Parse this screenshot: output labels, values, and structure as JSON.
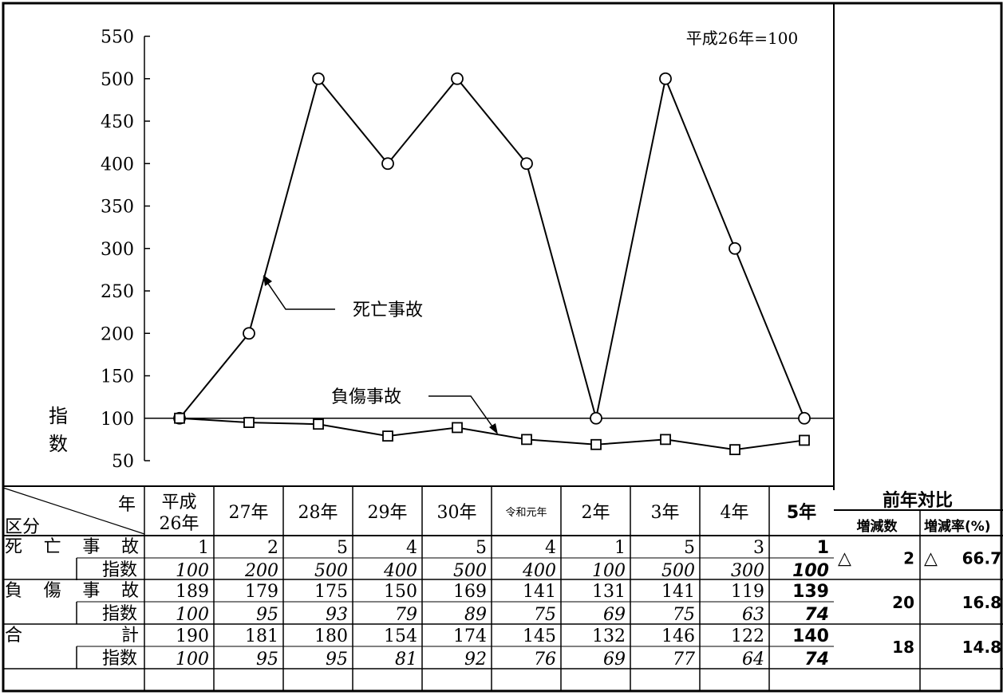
{
  "chart_data": {
    "type": "line",
    "ylabel": "指数",
    "ylim": [
      50,
      550
    ],
    "yticks": [
      550,
      500,
      450,
      400,
      350,
      300,
      250,
      200,
      150,
      100,
      50
    ],
    "note": "平成26年=100",
    "reference_line": 100,
    "categories": [
      "平成26年",
      "27年",
      "28年",
      "29年",
      "30年",
      "令和元年",
      "2年",
      "3年",
      "4年",
      "5年"
    ],
    "series": [
      {
        "name": "死亡事故",
        "marker": "circle",
        "values": [
          100,
          200,
          500,
          400,
          500,
          400,
          100,
          500,
          300,
          100
        ]
      },
      {
        "name": "負傷事故",
        "marker": "square",
        "values": [
          100,
          95,
          93,
          79,
          89,
          75,
          69,
          75,
          63,
          74
        ]
      }
    ]
  },
  "table": {
    "corner_year": "年",
    "corner_kubun": "区分",
    "headers": [
      {
        "lines": [
          "平成",
          "26年"
        ]
      },
      {
        "lines": [
          "27年"
        ]
      },
      {
        "lines": [
          "28年"
        ]
      },
      {
        "lines": [
          "29年"
        ]
      },
      {
        "lines": [
          "30年"
        ]
      },
      {
        "lines": [
          "令和元年"
        ],
        "small": true
      },
      {
        "lines": [
          "2年"
        ]
      },
      {
        "lines": [
          "3年"
        ]
      },
      {
        "lines": [
          "4年"
        ]
      },
      {
        "lines": [
          "5年"
        ],
        "bold": true
      }
    ],
    "comparison_title": "前年対比",
    "comparison_headers": [
      "増減数",
      "増減率(%)"
    ],
    "groups": [
      {
        "label_chars": [
          "死",
          "亡",
          "事",
          "故"
        ],
        "counts": [
          1,
          2,
          5,
          4,
          5,
          4,
          1,
          5,
          3,
          1
        ],
        "index_label": "指数",
        "index": [
          100,
          200,
          500,
          400,
          500,
          400,
          100,
          500,
          300,
          100
        ],
        "change": {
          "sign": "△",
          "value": "2"
        },
        "rate": {
          "sign": "△",
          "value": "66.7"
        }
      },
      {
        "label_chars": [
          "負",
          "傷",
          "事",
          "故"
        ],
        "counts": [
          189,
          179,
          175,
          150,
          169,
          141,
          131,
          141,
          119,
          139
        ],
        "index_label": "指数",
        "index": [
          100,
          95,
          93,
          79,
          89,
          75,
          69,
          75,
          63,
          74
        ],
        "change": {
          "sign": "",
          "value": "20"
        },
        "rate": {
          "sign": "",
          "value": "16.8"
        }
      },
      {
        "label_chars": [
          "合",
          "計"
        ],
        "counts": [
          190,
          181,
          180,
          154,
          174,
          145,
          132,
          146,
          122,
          140
        ],
        "index_label": "指数",
        "index": [
          100,
          95,
          95,
          81,
          92,
          76,
          69,
          77,
          64,
          74
        ],
        "change": {
          "sign": "",
          "value": "18"
        },
        "rate": {
          "sign": "",
          "value": "14.8"
        }
      }
    ]
  }
}
